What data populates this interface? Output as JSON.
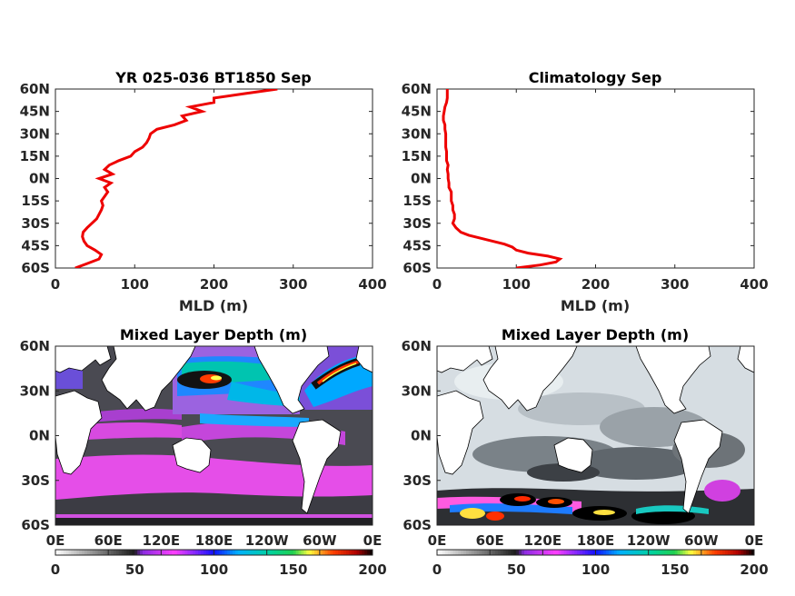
{
  "figure": {
    "background": "#ffffff",
    "line_color": "#ee0000",
    "land_color": "#ffffff",
    "coast_color": "#000000"
  },
  "colormap": {
    "stops": [
      {
        "v": 0,
        "c": "#ffffff"
      },
      {
        "v": 50,
        "c": "#1a1a1a"
      },
      {
        "v": 55,
        "c": "#8a2be2"
      },
      {
        "v": 75,
        "c": "#ff40ff"
      },
      {
        "v": 100,
        "c": "#1010ff"
      },
      {
        "v": 115,
        "c": "#00b0ff"
      },
      {
        "v": 135,
        "c": "#00d2a0"
      },
      {
        "v": 150,
        "c": "#20d050"
      },
      {
        "v": 160,
        "c": "#ffff40"
      },
      {
        "v": 175,
        "c": "#ff4000"
      },
      {
        "v": 190,
        "c": "#b00000"
      },
      {
        "v": 200,
        "c": "#000000"
      }
    ]
  },
  "chart_data": [
    {
      "type": "line",
      "title": "YR 025-036 BT1850 Sep",
      "xlabel": "MLD (m)",
      "ylabel": "",
      "xlim": [
        0,
        400
      ],
      "ylim": [
        -60,
        60
      ],
      "xticks": [
        "0",
        "100",
        "200",
        "300",
        "400"
      ],
      "yticks": [
        "60S",
        "45S",
        "30S",
        "15S",
        "0N",
        "15N",
        "30N",
        "45N",
        "60N"
      ],
      "series": [
        {
          "lat": [
            -60,
            -57,
            -54,
            -51,
            -48,
            -45,
            -42,
            -39,
            -36,
            -33,
            -30,
            -27,
            -24,
            -21,
            -18,
            -15,
            -12,
            -9,
            -6,
            -3,
            0,
            3,
            6,
            9,
            12,
            15,
            18,
            21,
            24,
            27,
            30,
            33,
            36,
            39,
            42,
            45,
            48,
            51,
            54,
            57,
            60
          ],
          "x": [
            25,
            40,
            55,
            58,
            50,
            40,
            36,
            34,
            35,
            40,
            46,
            52,
            55,
            58,
            60,
            58,
            62,
            66,
            62,
            70,
            55,
            72,
            62,
            68,
            80,
            95,
            100,
            110,
            115,
            118,
            120,
            128,
            150,
            165,
            160,
            185,
            170,
            200,
            200,
            240,
            280
          ]
        }
      ]
    },
    {
      "type": "line",
      "title": "Climatology Sep",
      "xlabel": "MLD (m)",
      "ylabel": "",
      "xlim": [
        0,
        400
      ],
      "ylim": [
        -60,
        60
      ],
      "xticks": [
        "0",
        "100",
        "200",
        "300",
        "400"
      ],
      "yticks": [
        "60S",
        "45S",
        "30S",
        "15S",
        "0N",
        "15N",
        "30N",
        "45N",
        "60N"
      ],
      "series": [
        {
          "lat": [
            -60,
            -58,
            -56,
            -54,
            -52,
            -50,
            -48,
            -46,
            -44,
            -42,
            -40,
            -38,
            -36,
            -33,
            -30,
            -27,
            -24,
            -21,
            -18,
            -15,
            -12,
            -9,
            -6,
            -3,
            0,
            3,
            6,
            9,
            12,
            15,
            18,
            21,
            24,
            27,
            30,
            33,
            36,
            39,
            42,
            45,
            48,
            51,
            54,
            57,
            60
          ],
          "x": [
            100,
            130,
            150,
            155,
            140,
            115,
            100,
            95,
            85,
            70,
            55,
            40,
            30,
            24,
            20,
            22,
            22,
            20,
            20,
            18,
            18,
            18,
            15,
            15,
            14,
            14,
            13,
            14,
            12,
            12,
            12,
            11,
            11,
            11,
            11,
            10,
            10,
            8,
            8,
            9,
            10,
            12,
            13,
            13,
            13
          ]
        }
      ]
    },
    {
      "type": "heatmap",
      "title": "Mixed Layer Depth (m)",
      "xticks": [
        "0E",
        "60E",
        "120E",
        "180E",
        "120W",
        "60W",
        "0E"
      ],
      "yticks": [
        "60S",
        "30S",
        "0N",
        "30N",
        "60N"
      ],
      "colorbar_ticks": [
        "0",
        "50",
        "100",
        "150",
        "200"
      ],
      "clim": [
        0,
        200
      ]
    },
    {
      "type": "heatmap",
      "title": "Mixed Layer Depth (m)",
      "xticks": [
        "0E",
        "60E",
        "120E",
        "180E",
        "120W",
        "60W",
        "0E"
      ],
      "yticks": [
        "60S",
        "30S",
        "0N",
        "30N",
        "60N"
      ],
      "colorbar_ticks": [
        "0",
        "50",
        "100",
        "150",
        "200"
      ],
      "clim": [
        0,
        200
      ]
    }
  ]
}
